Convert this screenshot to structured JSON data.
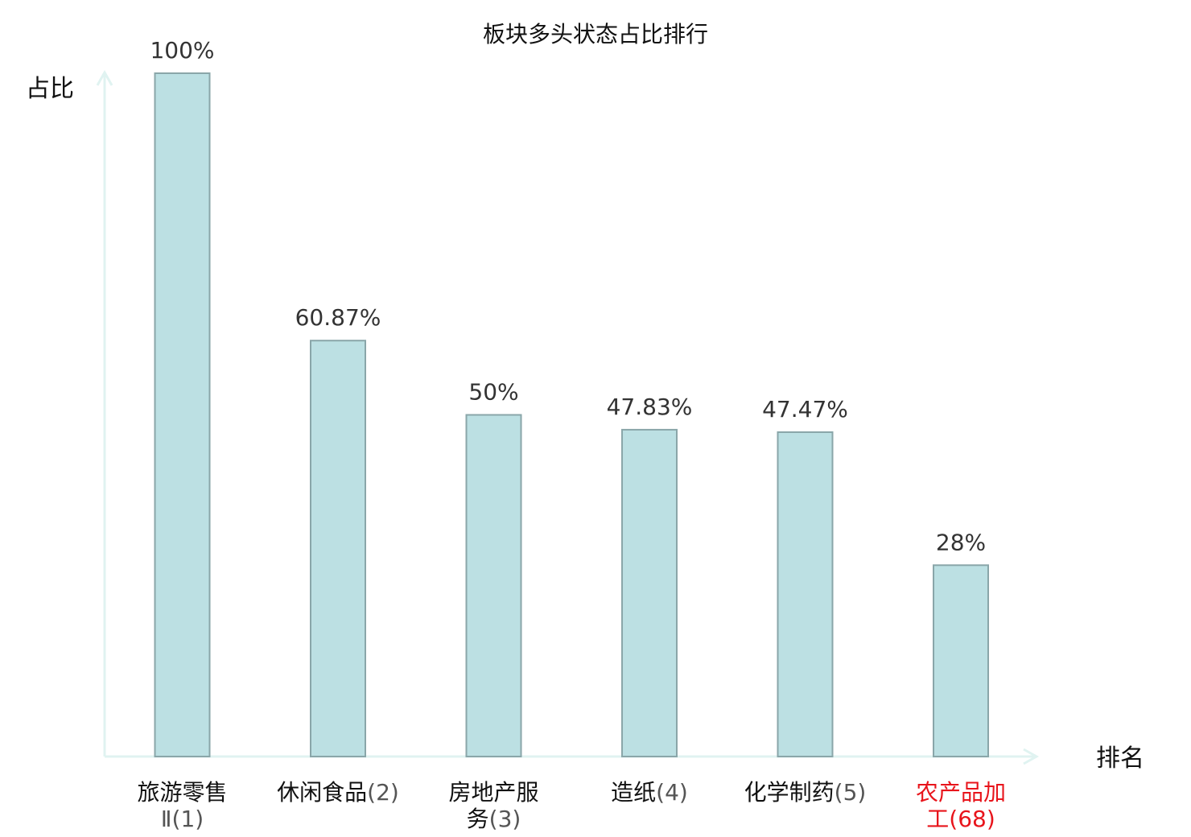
{
  "chart_data": {
    "type": "bar",
    "title": "板块多头状态占比排行",
    "ylabel": "占比",
    "xlabel": "排名",
    "ylim": [
      0,
      100
    ],
    "grid": false,
    "legend": "none",
    "categories": [
      {
        "lines": [
          {
            "name": "旅游零售",
            "rank": ""
          },
          {
            "name": "",
            "rank": "Ⅱ(1)"
          }
        ],
        "highlight": false
      },
      {
        "lines": [
          {
            "name": "休闲食品",
            "rank": "(2)"
          }
        ],
        "highlight": false
      },
      {
        "lines": [
          {
            "name": "房地产服",
            "rank": ""
          },
          {
            "name": "务",
            "rank": "(3)"
          }
        ],
        "highlight": false
      },
      {
        "lines": [
          {
            "name": "造纸",
            "rank": "(4)"
          }
        ],
        "highlight": false
      },
      {
        "lines": [
          {
            "name": "化学制药",
            "rank": "(5)"
          }
        ],
        "highlight": false
      },
      {
        "lines": [
          {
            "name": "农产品加",
            "rank": ""
          },
          {
            "name": "工",
            "rank": "(68)"
          }
        ],
        "highlight": true
      }
    ],
    "values": [
      100,
      60.87,
      50,
      47.83,
      47.47,
      28
    ],
    "value_labels": [
      "100%",
      "60.87%",
      "50%",
      "47.83%",
      "47.47%",
      "28%"
    ]
  },
  "colors": {
    "bar_fill": "#bce0e3",
    "bar_stroke": "#8aa6a9",
    "axis": "#e0f3f1",
    "highlight": "#e8141b"
  }
}
